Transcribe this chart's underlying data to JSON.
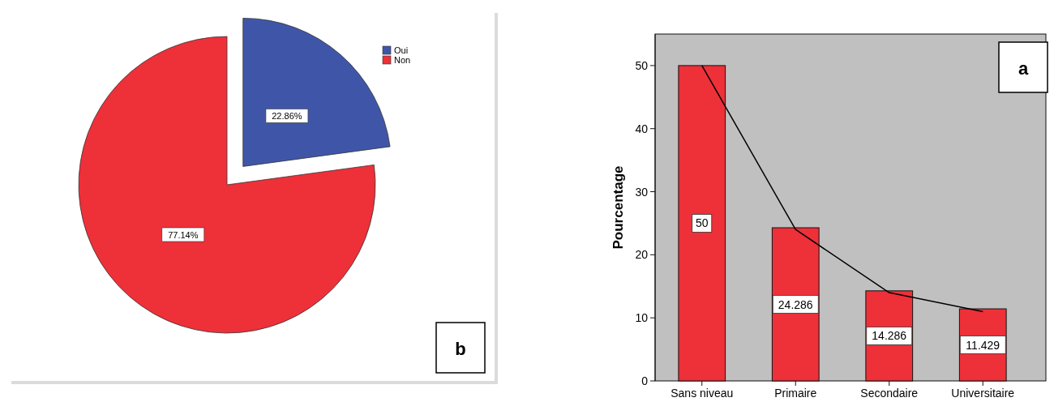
{
  "chart_data": [
    {
      "type": "pie",
      "categories": [
        "Oui",
        "Non"
      ],
      "values": [
        22.86,
        77.14
      ],
      "colors": [
        "#3f56a8",
        "#ee3039"
      ],
      "value_labels": [
        "22.86%",
        "77.14%"
      ],
      "legend": "top right",
      "annotations": [
        "b"
      ]
    },
    {
      "type": "bar",
      "categories": [
        "Sans niveau",
        "Primaire",
        "Secondaire",
        "Universitaire"
      ],
      "ylabel": "Pourcentage",
      "ylim": [
        0,
        55
      ],
      "yticks": [
        0,
        10,
        20,
        30,
        40,
        50
      ],
      "series": [
        {
          "type": "bar",
          "color": "#ee3039",
          "values": [
            50,
            24.286,
            14.286,
            11.429
          ],
          "value_labels": [
            "50",
            "24.286",
            "14.286",
            "11.429"
          ]
        },
        {
          "type": "line",
          "color": "#000000",
          "values": [
            50,
            24,
            14,
            11
          ]
        }
      ],
      "annotations": [
        "a"
      ]
    }
  ]
}
